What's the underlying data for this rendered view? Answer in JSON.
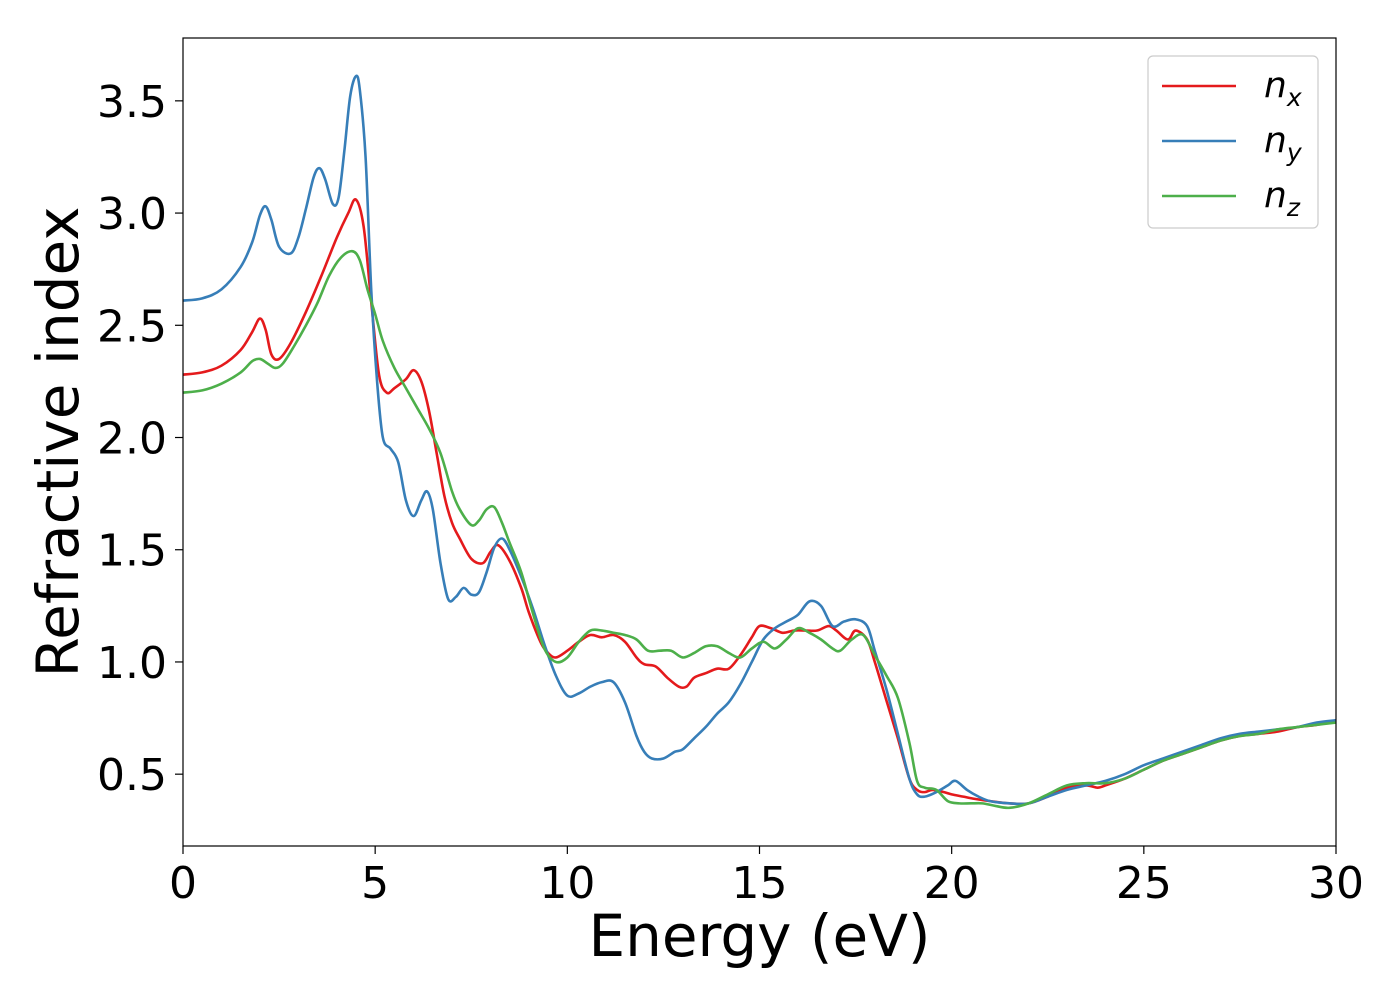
{
  "chart_data": {
    "type": "line",
    "xlabel": "Energy (eV)",
    "ylabel": "Refractive index",
    "xlim": [
      0,
      30
    ],
    "ylim": [
      0.18,
      3.78
    ],
    "xticks": [
      0,
      5,
      10,
      15,
      20,
      25,
      30
    ],
    "xtick_labels": [
      "0",
      "5",
      "10",
      "15",
      "20",
      "25",
      "30"
    ],
    "yticks": [
      0.5,
      1.0,
      1.5,
      2.0,
      2.5,
      3.0,
      3.5
    ],
    "ytick_labels": [
      "0.5",
      "1.0",
      "1.5",
      "2.0",
      "2.5",
      "3.0",
      "3.5"
    ],
    "grid": false,
    "legend_position": "top-right",
    "series": [
      {
        "name": "n_x",
        "label_base": "n",
        "label_sub": "x",
        "color": "#e41a1c",
        "x": [
          0,
          0.5,
          1.0,
          1.5,
          1.8,
          2.0,
          2.15,
          2.3,
          2.5,
          2.8,
          3.2,
          3.6,
          4.0,
          4.3,
          4.5,
          4.7,
          4.9,
          5.1,
          5.3,
          5.5,
          5.8,
          6.0,
          6.2,
          6.4,
          6.6,
          6.8,
          7.0,
          7.2,
          7.5,
          7.8,
          8.0,
          8.2,
          8.5,
          8.8,
          9.0,
          9.3,
          9.5,
          9.7,
          10.0,
          10.3,
          10.6,
          10.9,
          11.2,
          11.5,
          11.8,
          12.0,
          12.3,
          12.6,
          12.9,
          13.1,
          13.3,
          13.6,
          13.9,
          14.2,
          14.5,
          14.8,
          15.0,
          15.3,
          15.6,
          15.9,
          16.2,
          16.5,
          16.8,
          17.0,
          17.3,
          17.5,
          17.8,
          18.0,
          18.3,
          18.6,
          18.9,
          19.1,
          19.3,
          19.5,
          19.8,
          20.0,
          20.3,
          20.6,
          21.0,
          21.5,
          22.0,
          22.5,
          23.0,
          23.5,
          23.8,
          24.0,
          24.5,
          25.0,
          25.5,
          26.0,
          26.5,
          27.0,
          27.5,
          28.0,
          28.5,
          29.0,
          29.5,
          30.0
        ],
        "values": [
          2.28,
          2.29,
          2.32,
          2.39,
          2.47,
          2.53,
          2.48,
          2.37,
          2.35,
          2.42,
          2.56,
          2.72,
          2.89,
          3.0,
          3.06,
          2.94,
          2.6,
          2.28,
          2.2,
          2.22,
          2.26,
          2.3,
          2.25,
          2.12,
          1.93,
          1.74,
          1.62,
          1.55,
          1.46,
          1.44,
          1.49,
          1.52,
          1.45,
          1.33,
          1.22,
          1.09,
          1.04,
          1.02,
          1.05,
          1.09,
          1.12,
          1.11,
          1.12,
          1.09,
          1.02,
          0.99,
          0.98,
          0.93,
          0.89,
          0.89,
          0.93,
          0.95,
          0.97,
          0.97,
          1.03,
          1.11,
          1.16,
          1.15,
          1.13,
          1.14,
          1.14,
          1.14,
          1.16,
          1.14,
          1.1,
          1.14,
          1.1,
          1.0,
          0.83,
          0.66,
          0.48,
          0.43,
          0.42,
          0.43,
          0.42,
          0.41,
          0.4,
          0.39,
          0.38,
          0.37,
          0.37,
          0.4,
          0.44,
          0.45,
          0.44,
          0.45,
          0.48,
          0.52,
          0.56,
          0.59,
          0.62,
          0.65,
          0.67,
          0.68,
          0.69,
          0.71,
          0.72,
          0.74
        ]
      },
      {
        "name": "n_y",
        "label_base": "n",
        "label_sub": "y",
        "color": "#377eb8",
        "x": [
          0,
          0.5,
          1.0,
          1.5,
          1.8,
          2.0,
          2.15,
          2.3,
          2.5,
          2.8,
          3.0,
          3.2,
          3.4,
          3.55,
          3.7,
          3.9,
          4.05,
          4.2,
          4.35,
          4.5,
          4.6,
          4.75,
          4.9,
          5.05,
          5.2,
          5.4,
          5.6,
          5.8,
          6.0,
          6.2,
          6.35,
          6.5,
          6.7,
          6.9,
          7.1,
          7.3,
          7.5,
          7.7,
          7.9,
          8.1,
          8.3,
          8.5,
          8.8,
          9.1,
          9.4,
          9.7,
          10.0,
          10.3,
          10.6,
          10.9,
          11.2,
          11.5,
          11.8,
          12.0,
          12.2,
          12.5,
          12.8,
          13.0,
          13.3,
          13.6,
          13.9,
          14.2,
          14.5,
          14.8,
          15.1,
          15.4,
          15.7,
          16.0,
          16.3,
          16.6,
          16.9,
          17.2,
          17.5,
          17.8,
          18.0,
          18.3,
          18.6,
          18.9,
          19.1,
          19.3,
          19.6,
          19.9,
          20.1,
          20.4,
          20.7,
          21.0,
          21.5,
          22.0,
          22.5,
          23.0,
          23.5,
          24.0,
          24.5,
          25.0,
          25.5,
          26.0,
          26.5,
          27.0,
          27.5,
          28.0,
          28.5,
          29.0,
          29.5,
          30.0
        ],
        "values": [
          2.61,
          2.62,
          2.66,
          2.76,
          2.87,
          2.99,
          3.03,
          2.97,
          2.85,
          2.82,
          2.89,
          3.02,
          3.16,
          3.2,
          3.15,
          3.04,
          3.07,
          3.28,
          3.52,
          3.61,
          3.55,
          3.25,
          2.65,
          2.25,
          2.0,
          1.95,
          1.89,
          1.72,
          1.65,
          1.72,
          1.76,
          1.68,
          1.44,
          1.28,
          1.29,
          1.33,
          1.3,
          1.31,
          1.4,
          1.51,
          1.55,
          1.5,
          1.38,
          1.24,
          1.08,
          0.94,
          0.85,
          0.86,
          0.89,
          0.91,
          0.91,
          0.82,
          0.67,
          0.6,
          0.57,
          0.57,
          0.6,
          0.61,
          0.66,
          0.71,
          0.77,
          0.82,
          0.9,
          1.0,
          1.1,
          1.15,
          1.18,
          1.21,
          1.27,
          1.25,
          1.16,
          1.18,
          1.19,
          1.16,
          1.05,
          0.88,
          0.68,
          0.48,
          0.41,
          0.4,
          0.42,
          0.45,
          0.47,
          0.43,
          0.4,
          0.38,
          0.37,
          0.37,
          0.4,
          0.43,
          0.45,
          0.47,
          0.5,
          0.54,
          0.57,
          0.6,
          0.63,
          0.66,
          0.68,
          0.69,
          0.7,
          0.71,
          0.73,
          0.74
        ]
      },
      {
        "name": "n_z",
        "label_base": "n",
        "label_sub": "z",
        "color": "#4daf4a",
        "x": [
          0,
          0.5,
          1.0,
          1.5,
          1.8,
          2.0,
          2.2,
          2.4,
          2.6,
          2.9,
          3.2,
          3.5,
          3.8,
          4.1,
          4.4,
          4.6,
          4.8,
          5.0,
          5.2,
          5.5,
          5.8,
          6.1,
          6.4,
          6.7,
          7.0,
          7.2,
          7.5,
          7.7,
          7.9,
          8.1,
          8.3,
          8.5,
          8.8,
          9.1,
          9.4,
          9.7,
          10.0,
          10.3,
          10.6,
          10.9,
          11.2,
          11.5,
          11.8,
          12.1,
          12.4,
          12.7,
          13.0,
          13.3,
          13.6,
          13.9,
          14.2,
          14.5,
          14.8,
          15.1,
          15.4,
          15.7,
          16.0,
          16.3,
          16.6,
          16.9,
          17.1,
          17.4,
          17.7,
          18.0,
          18.3,
          18.6,
          18.9,
          19.1,
          19.3,
          19.6,
          19.9,
          20.2,
          20.5,
          20.8,
          21.1,
          21.5,
          22.0,
          22.5,
          23.0,
          23.5,
          24.0,
          24.5,
          25.0,
          25.5,
          26.0,
          26.5,
          27.0,
          27.5,
          28.0,
          28.5,
          29.0,
          29.5,
          30.0
        ],
        "values": [
          2.2,
          2.21,
          2.24,
          2.29,
          2.34,
          2.35,
          2.33,
          2.31,
          2.33,
          2.41,
          2.5,
          2.6,
          2.72,
          2.8,
          2.83,
          2.79,
          2.66,
          2.55,
          2.43,
          2.31,
          2.22,
          2.13,
          2.04,
          1.93,
          1.76,
          1.68,
          1.61,
          1.63,
          1.68,
          1.69,
          1.62,
          1.53,
          1.4,
          1.22,
          1.06,
          1.0,
          1.02,
          1.09,
          1.14,
          1.14,
          1.13,
          1.12,
          1.1,
          1.05,
          1.05,
          1.05,
          1.02,
          1.04,
          1.07,
          1.07,
          1.04,
          1.02,
          1.06,
          1.09,
          1.06,
          1.1,
          1.15,
          1.13,
          1.1,
          1.06,
          1.05,
          1.1,
          1.12,
          1.03,
          0.94,
          0.84,
          0.64,
          0.47,
          0.44,
          0.43,
          0.38,
          0.37,
          0.37,
          0.37,
          0.36,
          0.35,
          0.37,
          0.41,
          0.45,
          0.46,
          0.46,
          0.48,
          0.52,
          0.56,
          0.59,
          0.62,
          0.65,
          0.67,
          0.68,
          0.7,
          0.71,
          0.72,
          0.73
        ]
      }
    ]
  }
}
